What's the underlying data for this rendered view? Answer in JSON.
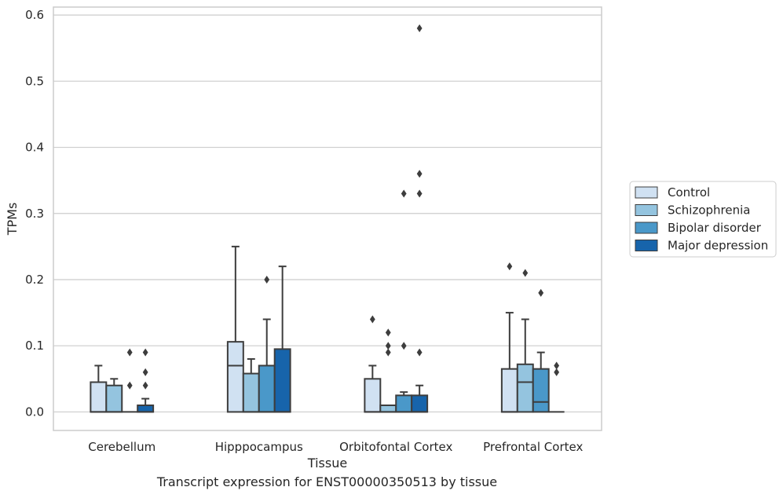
{
  "caption": "Transcript expression for ENST00000350513 by tissue",
  "chart_data": {
    "type": "box",
    "xlabel": "Tissue",
    "ylabel": "TPMs",
    "ylim": [
      -0.028,
      0.612
    ],
    "yticks": [
      0.0,
      0.1,
      0.2,
      0.3,
      0.4,
      0.5,
      0.6
    ],
    "ytick_labels": [
      "0.0",
      "0.1",
      "0.2",
      "0.3",
      "0.4",
      "0.5",
      "0.6"
    ],
    "grid": "horizontal",
    "legend_position": "right",
    "categories": [
      "Cerebellum",
      "Hipppocampus",
      "Orbitofontal Cortex",
      "Prefrontal Cortex"
    ],
    "series": [
      {
        "name": "Control",
        "color": "#d0e1f2",
        "boxes": [
          {
            "q1": 0.0,
            "median": 0.0,
            "q3": 0.045,
            "whisker_low": 0.0,
            "whisker_high": 0.07,
            "outliers": []
          },
          {
            "q1": 0.0,
            "median": 0.07,
            "q3": 0.106,
            "whisker_low": 0.0,
            "whisker_high": 0.25,
            "outliers": []
          },
          {
            "q1": 0.0,
            "median": 0.0,
            "q3": 0.05,
            "whisker_low": 0.0,
            "whisker_high": 0.07,
            "outliers": [
              0.14
            ]
          },
          {
            "q1": 0.0,
            "median": 0.0,
            "q3": 0.065,
            "whisker_low": 0.0,
            "whisker_high": 0.15,
            "outliers": [
              0.22
            ]
          }
        ]
      },
      {
        "name": "Schizophrenia",
        "color": "#94c4df",
        "boxes": [
          {
            "q1": 0.0,
            "median": 0.0,
            "q3": 0.04,
            "whisker_low": 0.0,
            "whisker_high": 0.05,
            "outliers": []
          },
          {
            "q1": 0.0,
            "median": 0.0,
            "q3": 0.058,
            "whisker_low": 0.0,
            "whisker_high": 0.08,
            "outliers": []
          },
          {
            "q1": 0.0,
            "median": 0.0,
            "q3": 0.01,
            "whisker_low": 0.0,
            "whisker_high": 0.01,
            "outliers": [
              0.09,
              0.1,
              0.12
            ]
          },
          {
            "q1": 0.0,
            "median": 0.045,
            "q3": 0.072,
            "whisker_low": 0.0,
            "whisker_high": 0.14,
            "outliers": [
              0.21
            ]
          }
        ]
      },
      {
        "name": "Bipolar disorder",
        "color": "#4a98c9",
        "boxes": [
          {
            "q1": 0.0,
            "median": 0.0,
            "q3": 0.0,
            "whisker_low": 0.0,
            "whisker_high": 0.0,
            "outliers": [
              0.04,
              0.09
            ]
          },
          {
            "q1": 0.0,
            "median": 0.0,
            "q3": 0.07,
            "whisker_low": 0.0,
            "whisker_high": 0.14,
            "outliers": [
              0.2
            ]
          },
          {
            "q1": 0.0,
            "median": 0.0,
            "q3": 0.025,
            "whisker_low": 0.0,
            "whisker_high": 0.03,
            "outliers": [
              0.1,
              0.33
            ]
          },
          {
            "q1": 0.0,
            "median": 0.015,
            "q3": 0.065,
            "whisker_low": 0.0,
            "whisker_high": 0.09,
            "outliers": [
              0.18
            ]
          }
        ]
      },
      {
        "name": "Major depression",
        "color": "#1764ab",
        "boxes": [
          {
            "q1": 0.0,
            "median": 0.0,
            "q3": 0.01,
            "whisker_low": 0.0,
            "whisker_high": 0.02,
            "outliers": [
              0.04,
              0.06,
              0.09
            ]
          },
          {
            "q1": 0.0,
            "median": 0.0,
            "q3": 0.095,
            "whisker_low": 0.0,
            "whisker_high": 0.22,
            "outliers": []
          },
          {
            "q1": 0.0,
            "median": 0.0,
            "q3": 0.025,
            "whisker_low": 0.0,
            "whisker_high": 0.04,
            "outliers": [
              0.09,
              0.33,
              0.36,
              0.58
            ]
          },
          {
            "q1": 0.0,
            "median": 0.0,
            "q3": 0.0,
            "whisker_low": 0.0,
            "whisker_high": 0.0,
            "outliers": [
              0.06,
              0.07
            ]
          }
        ]
      }
    ]
  }
}
